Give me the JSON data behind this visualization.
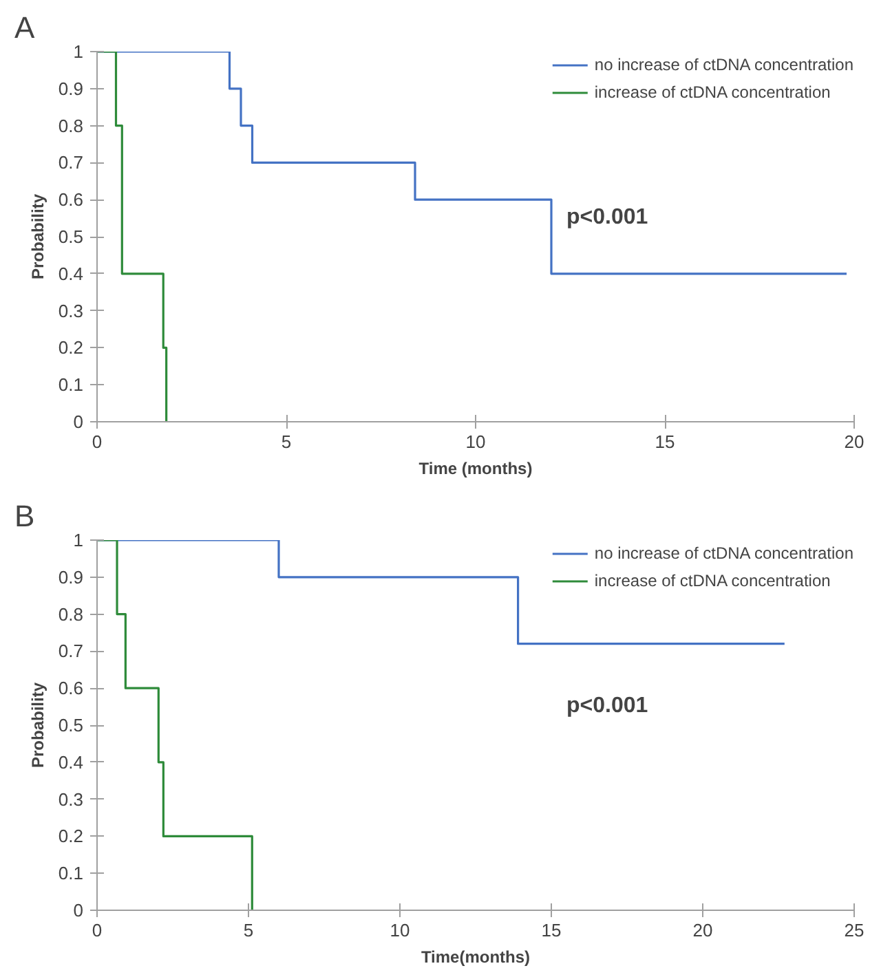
{
  "chart_data": [
    {
      "type": "step",
      "title": "A",
      "xlabel": "Time (months)",
      "ylabel": "Probability",
      "xlim": [
        0,
        20
      ],
      "xticks": [
        0,
        5,
        10,
        15,
        20
      ],
      "ylim": [
        0,
        1
      ],
      "yticks": [
        0,
        0.1,
        0.2,
        0.3,
        0.4,
        0.5,
        0.6,
        0.7,
        0.8,
        0.9,
        1
      ],
      "grid": false,
      "legend": "top right",
      "annotations": [
        "p<0.001"
      ],
      "series": [
        {
          "name": "no increase of ctDNA concentration",
          "color": "#4472c4",
          "x": [
            0,
            3.5,
            3.8,
            4.1,
            8.4,
            12.0,
            19.8
          ],
          "values": [
            1,
            0.9,
            0.8,
            0.7,
            0.6,
            0.4,
            0.4
          ]
        },
        {
          "name": "increase of ctDNA concentration",
          "color": "#2e8b3a",
          "x": [
            0,
            0.5,
            0.66,
            1.75,
            1.83
          ],
          "values": [
            1,
            0.8,
            0.4,
            0.2,
            0
          ]
        }
      ]
    },
    {
      "type": "step",
      "title": "B",
      "xlabel": "Time(months)",
      "ylabel": "Probability",
      "xlim": [
        0,
        25
      ],
      "xticks": [
        0,
        5,
        10,
        15,
        20,
        25
      ],
      "ylim": [
        0,
        1
      ],
      "yticks": [
        0,
        0.1,
        0.2,
        0.3,
        0.4,
        0.5,
        0.6,
        0.7,
        0.8,
        0.9,
        1
      ],
      "grid": false,
      "legend": "top right",
      "annotations": [
        "p<0.001"
      ],
      "series": [
        {
          "name": "no increase of ctDNA concentration",
          "color": "#4472c4",
          "x": [
            0,
            6.0,
            13.9,
            22.7
          ],
          "values": [
            1,
            0.9,
            0.72,
            0.72
          ]
        },
        {
          "name": "increase of ctDNA concentration",
          "color": "#2e8b3a",
          "x": [
            0,
            0.66,
            0.94,
            2.03,
            2.19,
            5.12
          ],
          "values": [
            1,
            0.8,
            0.6,
            0.4,
            0.2,
            0
          ]
        }
      ]
    }
  ]
}
